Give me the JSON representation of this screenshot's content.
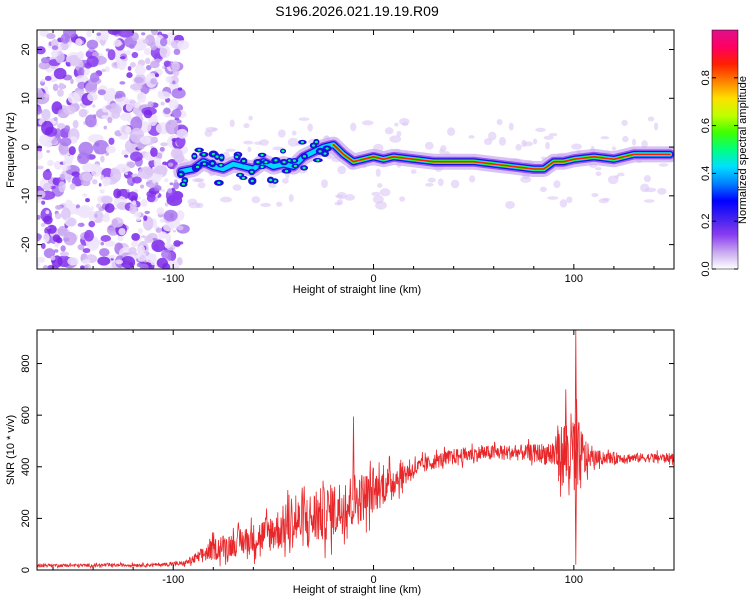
{
  "title": "S196.2026.021.19.19.R09",
  "colors": {
    "snr_line": "#e8272a",
    "cloud": "#8a3cf0",
    "axis": "#000000"
  },
  "chart_data": [
    {
      "type": "heatmap",
      "name": "spectrogram",
      "xlabel": "Height of straight line (km)",
      "ylabel": "Frequency (Hz)",
      "xlim": [
        -168,
        150
      ],
      "ylim": [
        -25,
        24
      ],
      "xticks": [
        -100,
        0,
        100
      ],
      "yticks": [
        -20,
        -10,
        0,
        10,
        20
      ],
      "noise_region_x": [
        -168,
        -95
      ],
      "ridge": [
        [
          -96,
          -5
        ],
        [
          -90,
          -4.5
        ],
        [
          -85,
          -3
        ],
        [
          -80,
          -4
        ],
        [
          -75,
          -4.5
        ],
        [
          -70,
          -3.5
        ],
        [
          -65,
          -4
        ],
        [
          -60,
          -4.5
        ],
        [
          -55,
          -3
        ],
        [
          -50,
          -4
        ],
        [
          -45,
          -3.5
        ],
        [
          -40,
          -4
        ],
        [
          -35,
          -2
        ],
        [
          -30,
          -1
        ],
        [
          -25,
          0
        ],
        [
          -20,
          0.5
        ],
        [
          -15,
          -1.5
        ],
        [
          -10,
          -3
        ],
        [
          -5,
          -2.5
        ],
        [
          0,
          -2
        ],
        [
          5,
          -2.5
        ],
        [
          10,
          -2
        ],
        [
          20,
          -2.5
        ],
        [
          30,
          -3
        ],
        [
          40,
          -3
        ],
        [
          50,
          -3
        ],
        [
          60,
          -3.5
        ],
        [
          70,
          -4
        ],
        [
          80,
          -4.5
        ],
        [
          85,
          -4.5
        ],
        [
          90,
          -3
        ],
        [
          95,
          -3
        ],
        [
          100,
          -2.5
        ],
        [
          110,
          -2
        ],
        [
          120,
          -2.5
        ],
        [
          130,
          -1.5
        ],
        [
          140,
          -1.5
        ],
        [
          148,
          -1.5
        ]
      ],
      "colorbar": {
        "label": "Normalized spectral amplitude",
        "min": 0.0,
        "max": 1.0,
        "ticks": [
          0.0,
          0.2,
          0.4,
          0.6,
          0.8
        ],
        "tick_labels": [
          "0.0",
          "0.2",
          "0.4",
          "0.6",
          "0.8"
        ],
        "colors": [
          "#ffffff",
          "#c8a8f0",
          "#8a3cf0",
          "#4020f0",
          "#0000ff",
          "#0080ff",
          "#00e0ff",
          "#00ff80",
          "#40ff00",
          "#c0ff00",
          "#ffe000",
          "#ff8000",
          "#ff2000",
          "#ff0060",
          "#e0108c"
        ]
      }
    },
    {
      "type": "line",
      "name": "snr",
      "xlabel": "Height of straight line (km)",
      "ylabel": "SNR (10 * v/v)",
      "xlim": [
        -168,
        150
      ],
      "ylim": [
        0,
        930
      ],
      "xticks": [
        -100,
        0,
        100
      ],
      "yticks": [
        0,
        200,
        400,
        600,
        800
      ],
      "envelope": [
        [
          -168,
          18,
          10
        ],
        [
          -140,
          18,
          10
        ],
        [
          -110,
          20,
          10
        ],
        [
          -95,
          25,
          15
        ],
        [
          -90,
          40,
          30
        ],
        [
          -85,
          60,
          50
        ],
        [
          -80,
          80,
          70
        ],
        [
          -75,
          90,
          80
        ],
        [
          -70,
          100,
          80
        ],
        [
          -60,
          120,
          100
        ],
        [
          -50,
          150,
          130
        ],
        [
          -40,
          180,
          160
        ],
        [
          -30,
          200,
          180
        ],
        [
          -20,
          230,
          180
        ],
        [
          -10,
          270,
          180
        ],
        [
          0,
          300,
          140
        ],
        [
          10,
          350,
          100
        ],
        [
          20,
          390,
          60
        ],
        [
          30,
          420,
          50
        ],
        [
          40,
          440,
          50
        ],
        [
          50,
          450,
          50
        ],
        [
          60,
          455,
          50
        ],
        [
          70,
          455,
          50
        ],
        [
          80,
          455,
          55
        ],
        [
          88,
          450,
          80
        ],
        [
          92,
          450,
          150
        ],
        [
          96,
          450,
          250
        ],
        [
          100,
          440,
          300
        ],
        [
          104,
          430,
          200
        ],
        [
          108,
          435,
          60
        ],
        [
          115,
          435,
          40
        ],
        [
          130,
          435,
          30
        ],
        [
          150,
          435,
          30
        ]
      ],
      "spikes": [
        [
          -10,
          595
        ],
        [
          101,
          930
        ],
        [
          96,
          700
        ],
        [
          101,
          20
        ],
        [
          92,
          560
        ]
      ]
    }
  ]
}
